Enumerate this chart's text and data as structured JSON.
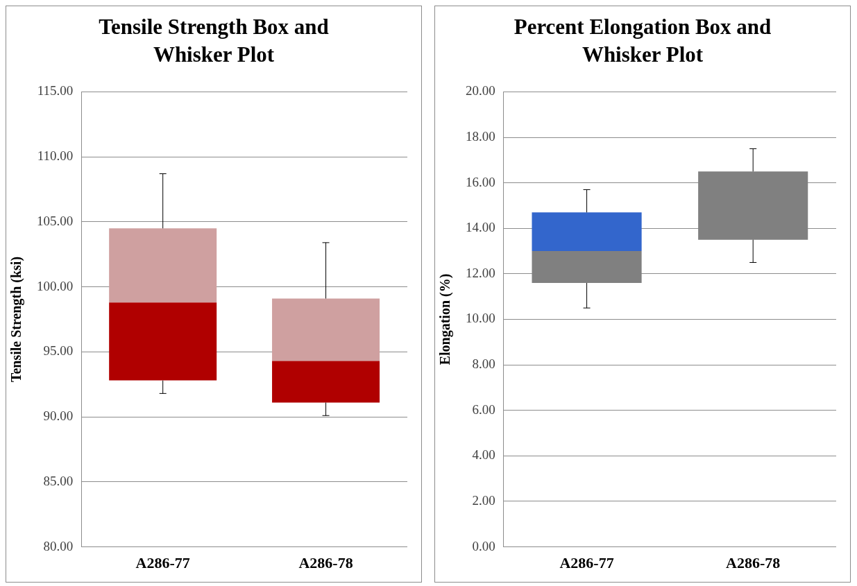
{
  "chart_data": [
    {
      "type": "box",
      "title": "Tensile Strength Box and Whisker Plot",
      "ylabel": "Tensile Strength (ksi)",
      "categories": [
        "A286-77",
        "A286-78"
      ],
      "ylim": [
        80,
        115
      ],
      "yticks": [
        {
          "value": 80,
          "label": "80.00"
        },
        {
          "value": 85,
          "label": "85.00"
        },
        {
          "value": 90,
          "label": "90.00"
        },
        {
          "value": 95,
          "label": "95.00"
        },
        {
          "value": 100,
          "label": "100.00"
        },
        {
          "value": 105,
          "label": "105.00"
        },
        {
          "value": 110,
          "label": "110.00"
        },
        {
          "value": 115,
          "label": "115.00"
        }
      ],
      "grid": "y",
      "legend": false,
      "series": [
        {
          "color": "#cfa0a0",
          "colors": [
            "#b00000",
            "#b00000"
          ],
          "boxes": [
            {
              "low": 91.8,
              "q1": 92.8,
              "median": 98.8,
              "q3": 104.5,
              "high": 108.7
            },
            {
              "low": 90.1,
              "q1": 91.1,
              "median": 94.3,
              "q3": 99.1,
              "high": 103.4
            }
          ]
        }
      ]
    },
    {
      "type": "box",
      "title": "Percent Elongation Box and Whisker Plot",
      "ylabel": "Elongation (%)",
      "categories": [
        "A286-77",
        "A286-78"
      ],
      "ylim": [
        0,
        20
      ],
      "yticks": [
        {
          "value": 0,
          "label": "0.00"
        },
        {
          "value": 2,
          "label": "2.00"
        },
        {
          "value": 4,
          "label": "4.00"
        },
        {
          "value": 6,
          "label": "6.00"
        },
        {
          "value": 8,
          "label": "8.00"
        },
        {
          "value": 10,
          "label": "10.00"
        },
        {
          "value": 12,
          "label": "12.00"
        },
        {
          "value": 14,
          "label": "14.00"
        },
        {
          "value": 16,
          "label": "16.00"
        },
        {
          "value": 18,
          "label": "18.00"
        },
        {
          "value": 20,
          "label": "20.00"
        }
      ],
      "grid": "y",
      "legend": false,
      "series": [
        {
          "color": "#3366cc",
          "colors": [
            "#808080",
            "#808080"
          ],
          "boxes": [
            {
              "low": 10.5,
              "q1": 11.6,
              "median": 13.0,
              "q3": 14.7,
              "high": 15.7
            },
            {
              "low": 12.5,
              "q1": 13.5,
              "median": 16.5,
              "q3": 16.5,
              "high": 17.5
            }
          ]
        }
      ]
    }
  ]
}
